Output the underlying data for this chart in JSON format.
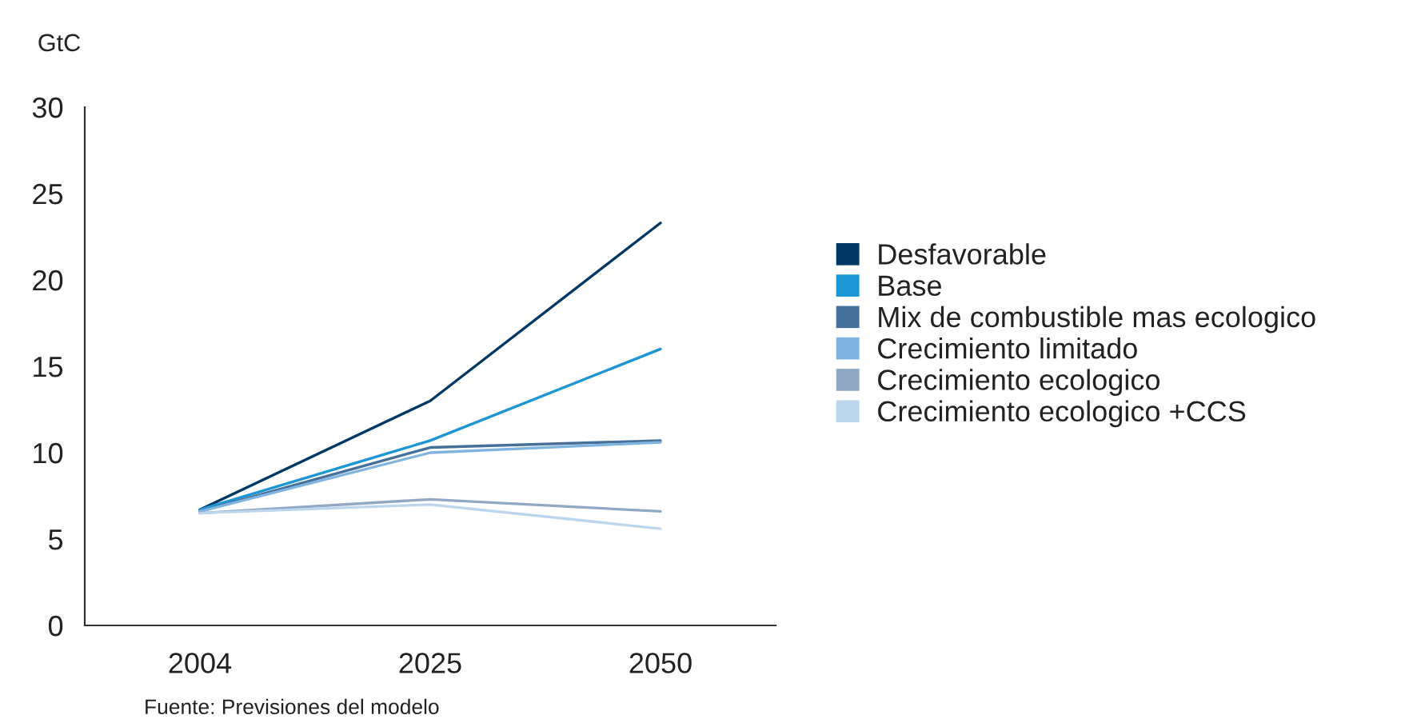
{
  "chart_data": {
    "type": "line",
    "ylabel": "GtC",
    "categories": [
      "2004",
      "2025",
      "2050"
    ],
    "series": [
      {
        "name": "Desfavorable",
        "color": "#003865",
        "values": [
          6.7,
          13.0,
          23.3
        ]
      },
      {
        "name": "Base",
        "color": "#1b95d3",
        "values": [
          6.7,
          10.7,
          16.0
        ]
      },
      {
        "name": "Mix de combustible mas ecologico",
        "color": "#46709a",
        "values": [
          6.6,
          10.3,
          10.7
        ]
      },
      {
        "name": "Crecimiento limitado",
        "color": "#7fb3e0",
        "values": [
          6.6,
          10.0,
          10.6
        ]
      },
      {
        "name": "Crecimiento ecologico",
        "color": "#90a8c4",
        "values": [
          6.5,
          7.3,
          6.6
        ]
      },
      {
        "name": "Crecimiento ecologico +CCS",
        "color": "#bcd6ee",
        "values": [
          6.5,
          7.0,
          5.6
        ]
      }
    ],
    "ylim": [
      0,
      30
    ],
    "yticks": [
      0,
      5,
      10,
      15,
      20,
      25,
      30
    ],
    "grid": false,
    "legend": "right",
    "marker": "none",
    "line_style": "solid",
    "annotations": [
      "Fuente: Previsiones del modelo"
    ]
  }
}
